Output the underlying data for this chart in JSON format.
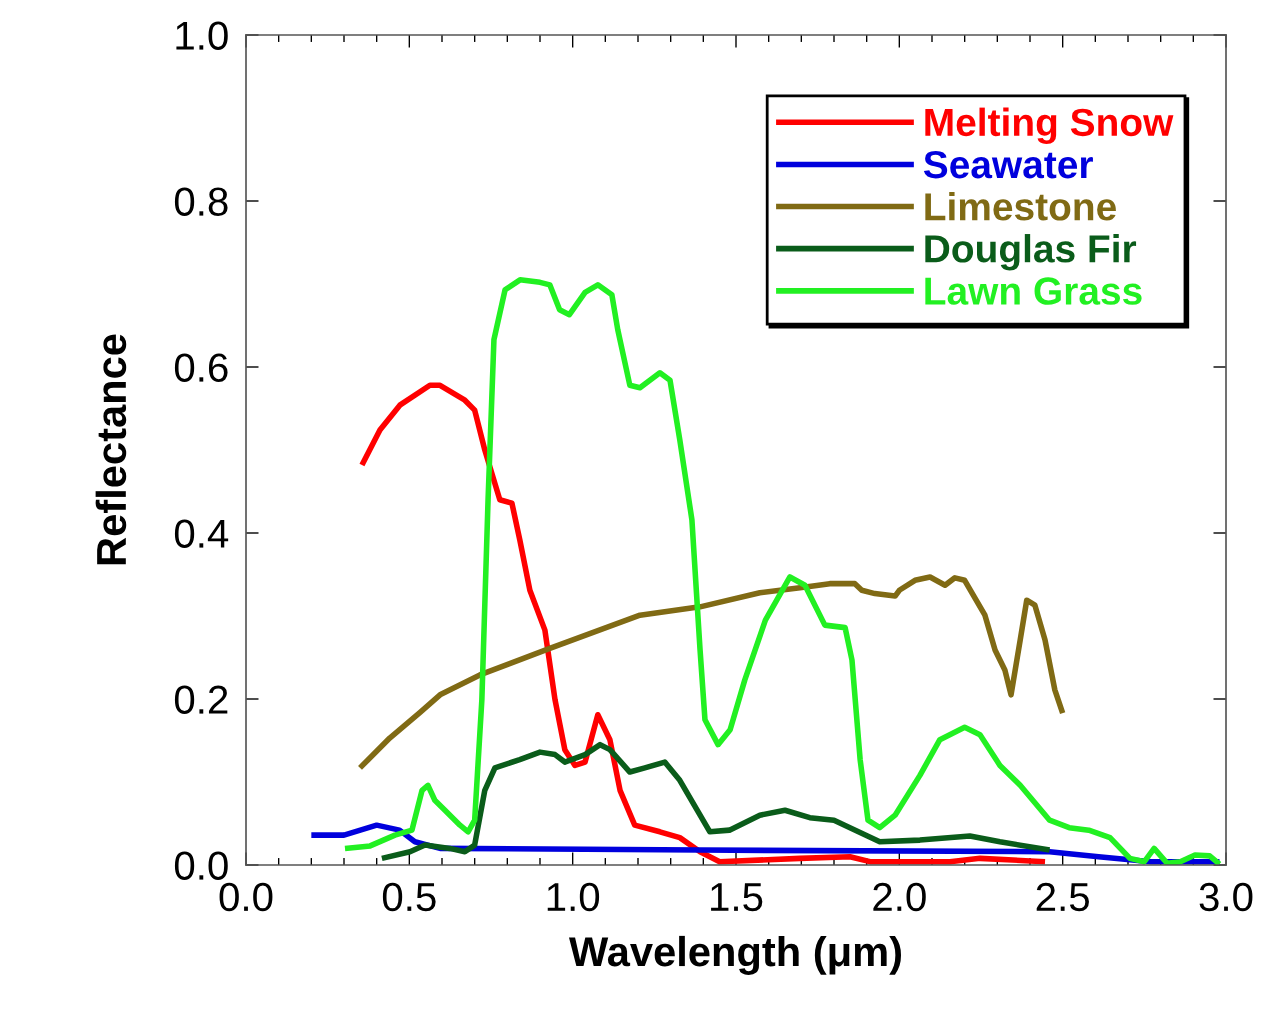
{
  "chart_data": {
    "type": "line",
    "xlabel": "Wavelength (μm)",
    "ylabel": "Reflectance",
    "xlim": [
      0,
      3.0
    ],
    "ylim": [
      0,
      1.0
    ],
    "xticks": [
      {
        "value": 0,
        "label": "0.0"
      },
      {
        "value": 0.1,
        "label": null
      },
      {
        "value": 0.2,
        "label": null
      },
      {
        "value": 0.3,
        "label": null
      },
      {
        "value": 0.4,
        "label": null
      },
      {
        "value": 0.5,
        "label": "0.5"
      },
      {
        "value": 0.6,
        "label": null
      },
      {
        "value": 0.7,
        "label": null
      },
      {
        "value": 0.8,
        "label": null
      },
      {
        "value": 0.9,
        "label": null
      },
      {
        "value": 1.0,
        "label": "1.0"
      },
      {
        "value": 1.1,
        "label": null
      },
      {
        "value": 1.2,
        "label": null
      },
      {
        "value": 1.3,
        "label": null
      },
      {
        "value": 1.4,
        "label": null
      },
      {
        "value": 1.5,
        "label": "1.5"
      },
      {
        "value": 1.6,
        "label": null
      },
      {
        "value": 1.7,
        "label": null
      },
      {
        "value": 1.8,
        "label": null
      },
      {
        "value": 1.9,
        "label": null
      },
      {
        "value": 2.0,
        "label": "2.0"
      },
      {
        "value": 2.1,
        "label": null
      },
      {
        "value": 2.2,
        "label": null
      },
      {
        "value": 2.3,
        "label": null
      },
      {
        "value": 2.4,
        "label": null
      },
      {
        "value": 2.5,
        "label": "2.5"
      },
      {
        "value": 2.6,
        "label": null
      },
      {
        "value": 2.7,
        "label": null
      },
      {
        "value": 2.8,
        "label": null
      },
      {
        "value": 2.9,
        "label": null
      },
      {
        "value": 3.0,
        "label": "3.0"
      }
    ],
    "yticks": [
      {
        "value": 0,
        "label": "0.0"
      },
      {
        "value": 0.2,
        "label": "0.2"
      },
      {
        "value": 0.4,
        "label": "0.4"
      },
      {
        "value": 0.6,
        "label": "0.6"
      },
      {
        "value": 0.8,
        "label": "0.8"
      },
      {
        "value": 1.0,
        "label": "1.0"
      }
    ],
    "grid": false,
    "legend": "top right",
    "marker": "none",
    "line_style": "solid",
    "series": [
      {
        "name": "Melting Snow",
        "color": "#ff0000",
        "x": [
          0.355,
          0.41,
          0.471,
          0.563,
          0.594,
          0.67,
          0.7,
          0.731,
          0.777,
          0.814,
          0.838,
          0.869,
          0.915,
          0.946,
          0.976,
          1.007,
          1.038,
          1.077,
          1.114,
          1.145,
          1.19,
          1.267,
          1.328,
          1.39,
          1.45,
          1.696,
          1.849,
          1.91,
          2.155,
          2.247,
          2.446
        ],
        "values": [
          0.482,
          0.524,
          0.554,
          0.578,
          0.578,
          0.56,
          0.548,
          0.5,
          0.44,
          0.436,
          0.392,
          0.331,
          0.283,
          0.199,
          0.139,
          0.12,
          0.124,
          0.181,
          0.151,
          0.09,
          0.048,
          0.04,
          0.033,
          0.016,
          0.004,
          0.008,
          0.01,
          0.004,
          0.004,
          0.008,
          0.004
        ]
      },
      {
        "name": "Seawater",
        "color": "#0000dd",
        "x": [
          0.2,
          0.3,
          0.4,
          0.47,
          0.517,
          0.594,
          1.39,
          2.46,
          2.61,
          2.77,
          2.98
        ],
        "values": [
          0.036,
          0.036,
          0.048,
          0.042,
          0.028,
          0.02,
          0.018,
          0.016,
          0.01,
          0.004,
          0.004
        ]
      },
      {
        "name": "Limestone",
        "color": "#806a14",
        "x": [
          0.349,
          0.44,
          0.533,
          0.594,
          0.716,
          0.93,
          1.206,
          1.39,
          1.573,
          1.696,
          1.787,
          1.864,
          1.885,
          1.925,
          1.987,
          2.0,
          2.048,
          2.094,
          2.14,
          2.17,
          2.2,
          2.262,
          2.293,
          2.323,
          2.342,
          2.37,
          2.39,
          2.415,
          2.446,
          2.476,
          2.5
        ],
        "values": [
          0.117,
          0.153,
          0.184,
          0.205,
          0.229,
          0.261,
          0.301,
          0.311,
          0.328,
          0.334,
          0.339,
          0.339,
          0.331,
          0.327,
          0.324,
          0.331,
          0.343,
          0.347,
          0.337,
          0.346,
          0.343,
          0.301,
          0.259,
          0.235,
          0.205,
          0.271,
          0.319,
          0.313,
          0.271,
          0.211,
          0.183
        ]
      },
      {
        "name": "Douglas Fir",
        "color": "#0a5c1a",
        "x": [
          0.416,
          0.502,
          0.548,
          0.624,
          0.67,
          0.7,
          0.731,
          0.762,
          0.838,
          0.9,
          0.946,
          0.976,
          1.038,
          1.084,
          1.114,
          1.175,
          1.221,
          1.282,
          1.328,
          1.42,
          1.48,
          1.573,
          1.65,
          1.726,
          1.8,
          1.94,
          2.063,
          2.216,
          2.308,
          2.46
        ],
        "values": [
          0.008,
          0.016,
          0.024,
          0.02,
          0.016,
          0.024,
          0.09,
          0.117,
          0.127,
          0.136,
          0.133,
          0.124,
          0.133,
          0.145,
          0.139,
          0.112,
          0.117,
          0.124,
          0.102,
          0.04,
          0.042,
          0.06,
          0.066,
          0.057,
          0.054,
          0.028,
          0.03,
          0.035,
          0.028,
          0.018
        ]
      },
      {
        "name": "Lawn Grass",
        "color": "#22f022",
        "x": [
          0.303,
          0.38,
          0.456,
          0.508,
          0.539,
          0.557,
          0.578,
          0.609,
          0.655,
          0.68,
          0.7,
          0.722,
          0.741,
          0.759,
          0.793,
          0.839,
          0.9,
          0.93,
          0.96,
          0.99,
          1.038,
          1.077,
          1.12,
          1.138,
          1.175,
          1.206,
          1.267,
          1.298,
          1.328,
          1.365,
          1.39,
          1.405,
          1.445,
          1.482,
          1.527,
          1.59,
          1.665,
          1.711,
          1.772,
          1.834,
          1.855,
          1.88,
          1.904,
          1.94,
          1.987,
          2.063,
          2.124,
          2.2,
          2.247,
          2.308,
          2.37,
          2.46,
          2.52,
          2.58,
          2.645,
          2.706,
          2.75,
          2.78,
          2.82,
          2.86,
          2.905,
          2.95,
          2.98
        ],
        "values": [
          0.02,
          0.023,
          0.036,
          0.042,
          0.09,
          0.096,
          0.078,
          0.066,
          0.048,
          0.04,
          0.054,
          0.199,
          0.44,
          0.633,
          0.693,
          0.705,
          0.702,
          0.699,
          0.669,
          0.663,
          0.69,
          0.699,
          0.687,
          0.645,
          0.578,
          0.575,
          0.593,
          0.584,
          0.512,
          0.416,
          0.259,
          0.175,
          0.145,
          0.163,
          0.223,
          0.295,
          0.347,
          0.337,
          0.289,
          0.286,
          0.247,
          0.127,
          0.054,
          0.045,
          0.06,
          0.108,
          0.151,
          0.166,
          0.157,
          0.12,
          0.096,
          0.054,
          0.045,
          0.042,
          0.033,
          0.008,
          0.004,
          0.02,
          0.002,
          0.004,
          0.012,
          0.011,
          0.001
        ]
      }
    ]
  }
}
